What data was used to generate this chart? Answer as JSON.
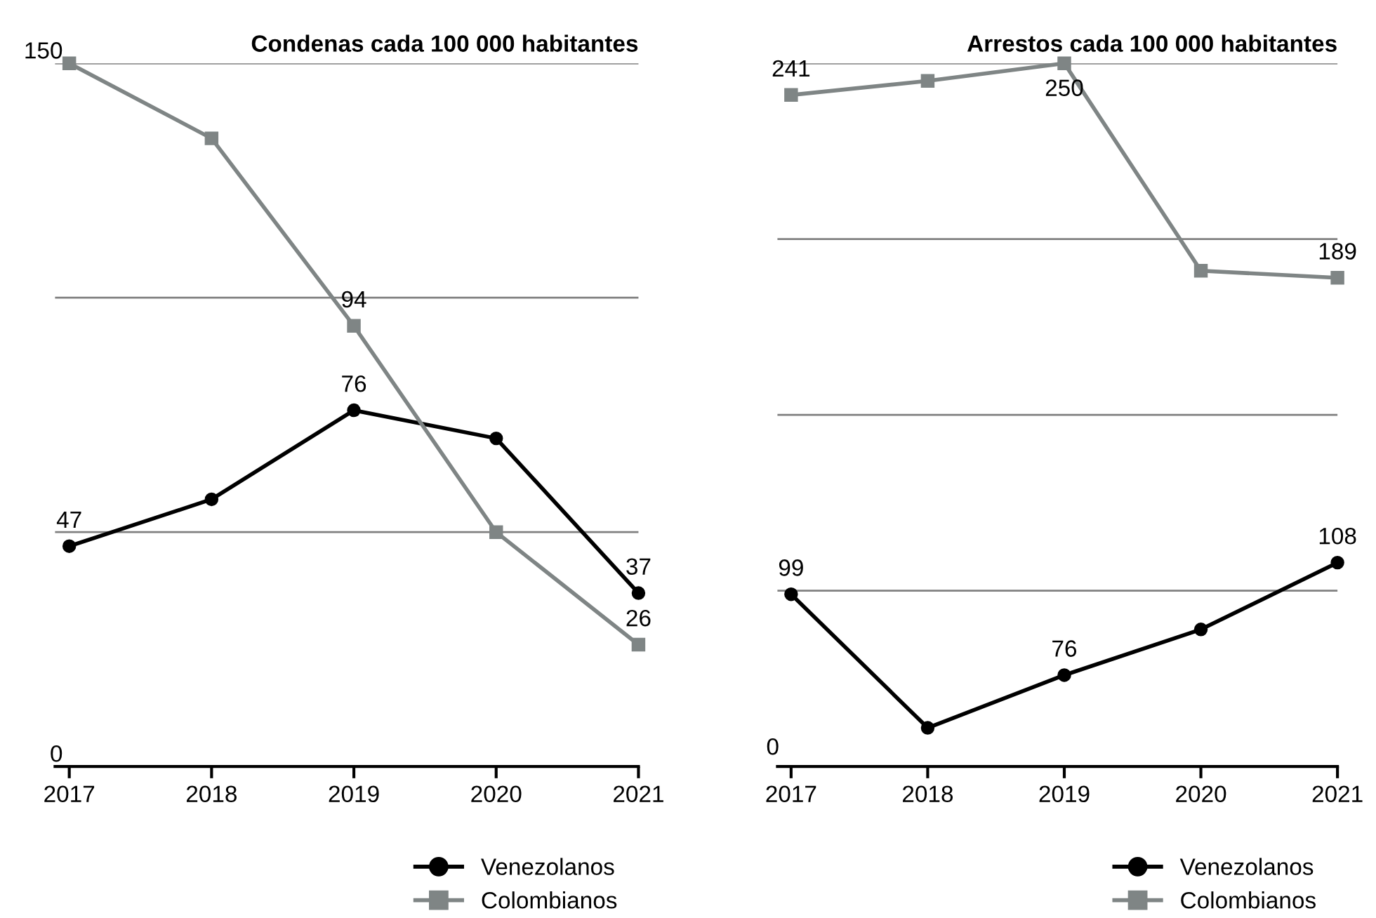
{
  "chart_data": [
    {
      "type": "line",
      "title": "Condenas cada 100 000 habitantes",
      "categories": [
        "2017",
        "2018",
        "2019",
        "2020",
        "2021"
      ],
      "ylim": [
        0,
        150
      ],
      "yticks": [
        0,
        {
          "value": 50,
          "label": null
        },
        {
          "value": 100,
          "label": null
        },
        150
      ],
      "grid": "y",
      "legend": "bottom right",
      "series": [
        {
          "name": "Venezolanos",
          "color": "#000000",
          "marker": "circle",
          "values": [
            47,
            57,
            76,
            70,
            37
          ],
          "value_labels": [
            "47",
            null,
            "76",
            null,
            "37"
          ]
        },
        {
          "name": "Colombianos",
          "color": "#7f8585",
          "marker": "square",
          "values": [
            150,
            134,
            94,
            50,
            26
          ],
          "value_labels": [
            null,
            null,
            "94",
            null,
            "26"
          ]
        }
      ]
    },
    {
      "type": "line",
      "title": "Arrestos cada 100 000 habitantes",
      "categories": [
        "2017",
        "2018",
        "2019",
        "2020",
        "2021"
      ],
      "ylim": [
        50,
        250
      ],
      "legend": "bottom right",
      "annotations": [
        "0"
      ],
      "ref_lines": [
        {
          "axis": "y",
          "value": 100,
          "color": "#808080"
        },
        {
          "axis": "y",
          "value": 150,
          "color": "#808080"
        },
        {
          "axis": "y",
          "value": 200,
          "color": "#808080"
        },
        {
          "axis": "y",
          "value": 250,
          "color": "#808080"
        }
      ],
      "series": [
        {
          "name": "Venezolanos",
          "color": "#000000",
          "marker": "circle",
          "values": [
            99,
            61,
            76,
            89,
            108
          ],
          "value_labels": [
            "99",
            null,
            "76",
            null,
            "108"
          ]
        },
        {
          "name": "Colombianos",
          "color": "#7f8585",
          "marker": "square",
          "values": [
            241,
            245,
            250,
            191,
            189
          ],
          "value_labels": [
            "241",
            null,
            "250",
            null,
            "189"
          ]
        }
      ]
    }
  ]
}
